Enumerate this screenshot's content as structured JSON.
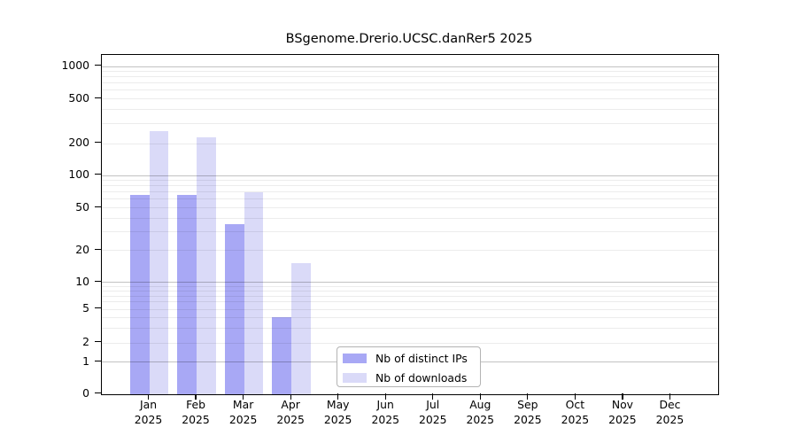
{
  "title": "BSgenome.Drerio.UCSC.danRer5 2025",
  "colors": {
    "distinct_ips": "#a8a8f5",
    "downloads": "#dadaf8",
    "grid_major": "#c4c4c4",
    "grid_minor": "#ececec",
    "spine": "#000000"
  },
  "legend": {
    "items": [
      {
        "label": "Nb of distinct IPs",
        "color": "#a8a8f5"
      },
      {
        "label": "Nb of downloads",
        "color": "#dadaf8"
      }
    ]
  },
  "axes": {
    "y_tick_labels": [
      "1000",
      "500",
      "200",
      "100",
      "50",
      "20",
      "10",
      "5",
      "2",
      "1",
      "0"
    ],
    "x_months": [
      "Jan",
      "Feb",
      "Mar",
      "Apr",
      "May",
      "Jun",
      "Jul",
      "Aug",
      "Sep",
      "Oct",
      "Nov",
      "Dec"
    ],
    "x_year": "2025"
  },
  "chart_data": {
    "type": "bar",
    "title": "BSgenome.Drerio.UCSC.danRer5 2025",
    "categories": [
      "Jan 2025",
      "Feb 2025",
      "Mar 2025",
      "Apr 2025",
      "May 2025",
      "Jun 2025",
      "Jul 2025",
      "Aug 2025",
      "Sep 2025",
      "Oct 2025",
      "Nov 2025",
      "Dec 2025"
    ],
    "series": [
      {
        "name": "Nb of distinct IPs",
        "color": "#a8a8f5",
        "values": [
          66,
          66,
          35,
          4,
          0,
          0,
          0,
          0,
          0,
          0,
          0,
          0
        ]
      },
      {
        "name": "Nb of downloads",
        "color": "#dadaf8",
        "values": [
          258,
          226,
          70,
          15,
          0,
          0,
          0,
          0,
          0,
          0,
          0,
          0
        ]
      }
    ],
    "xlabel": "",
    "ylabel": "",
    "y_scale": "log-like (0, then log decades 1-1000)",
    "y_ticks": [
      0,
      1,
      2,
      5,
      10,
      20,
      50,
      100,
      200,
      500,
      1000
    ],
    "ylim": [
      0,
      1400
    ],
    "grid": true,
    "legend_position": "lower center"
  }
}
